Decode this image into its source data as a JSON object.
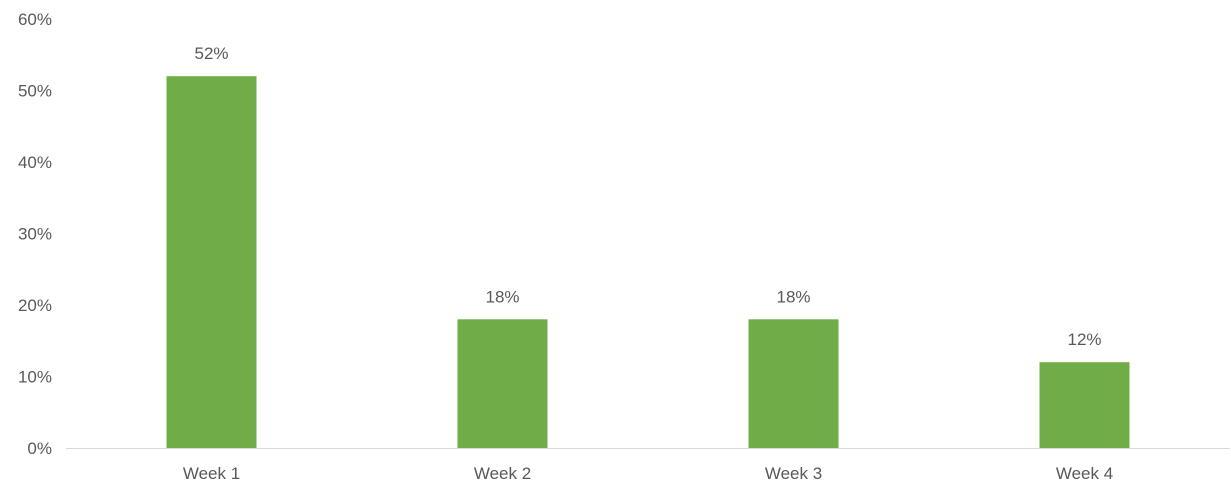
{
  "chart_data": {
    "type": "bar",
    "title": "",
    "xlabel": "",
    "ylabel": "",
    "categories": [
      "Week 1",
      "Week 2",
      "Week 3",
      "Week 4"
    ],
    "values": [
      52,
      18,
      18,
      12
    ],
    "data_labels": [
      "52%",
      "18%",
      "18%",
      "12%"
    ],
    "ylim": [
      0,
      60
    ],
    "y_ticks": [
      0,
      10,
      20,
      30,
      40,
      50,
      60
    ],
    "y_tick_labels": [
      "0%",
      "10%",
      "20%",
      "30%",
      "40%",
      "50%",
      "60%"
    ],
    "grid": false,
    "legend": "none",
    "bar_color": "#70AD47",
    "axis_color": "#D9D9D9",
    "label_color": "#595959"
  }
}
